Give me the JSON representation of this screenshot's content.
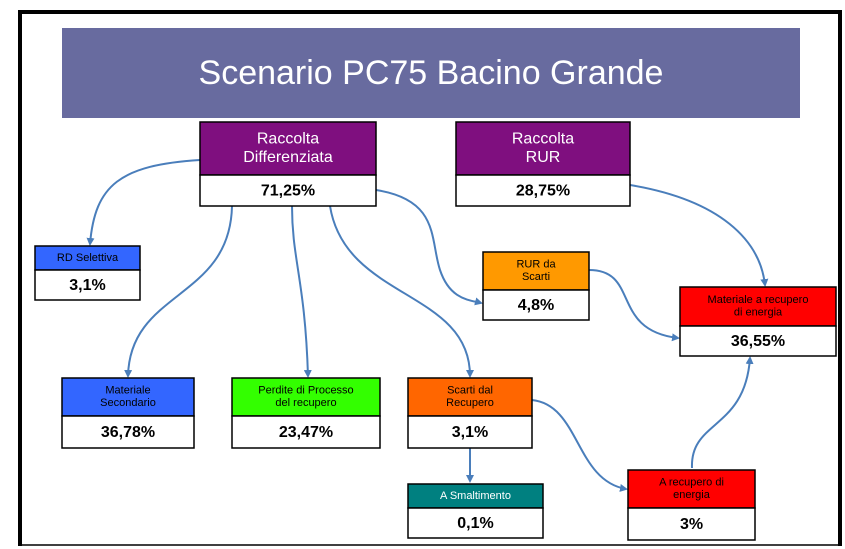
{
  "title": "Scenario PC75 Bacino Grande",
  "nodes": [
    {
      "label": [
        "Raccolta",
        "Differenziata"
      ],
      "value": "71,25%"
    },
    {
      "label": [
        "Raccolta",
        "RUR"
      ],
      "value": "28,75%"
    },
    {
      "label": [
        "RD Selettiva"
      ],
      "value": "3,1%"
    },
    {
      "label": [
        "RUR da",
        "Scarti"
      ],
      "value": "4,8%"
    },
    {
      "label": [
        "Materiale a recupero",
        "di energia"
      ],
      "value": "36,55%"
    },
    {
      "label": [
        "Materiale",
        "Secondario"
      ],
      "value": "36,78%"
    },
    {
      "label": [
        "Perdite di Processo",
        "del recupero"
      ],
      "value": "23,47%"
    },
    {
      "label": [
        "Scarti dal",
        "Recupero"
      ],
      "value": "3,1%"
    },
    {
      "label": [
        "A Smaltimento"
      ],
      "value": "0,1%"
    },
    {
      "label": [
        "A recupero di",
        "energia"
      ],
      "value": "3%"
    }
  ]
}
